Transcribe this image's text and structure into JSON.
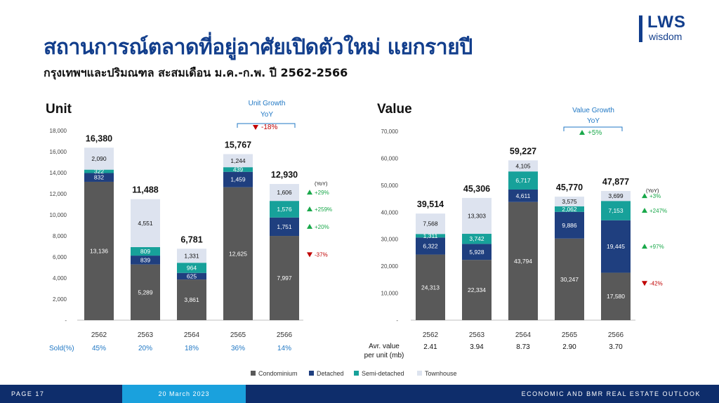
{
  "title": "สถานการณ์ตลาดที่อยู่อาศัยเปิดตัวใหม่ แยกรายปี",
  "subtitle": "กรุงเทพฯและปริมณฑล สะสมเดือน ม.ค.-ก.พ. ปี 2562-2566",
  "logo": {
    "name": "LWS",
    "sub": "wisdom"
  },
  "colors": {
    "Condominium": "#595959",
    "Detached": "#1f3f7f",
    "Semi-detached": "#17a19a",
    "Townhouse": "#dde3ef",
    "up": "#19a84a",
    "down": "#c00000",
    "accent_blue": "#1f77c4"
  },
  "legend": [
    "Condominium",
    "Detached",
    "Semi-detached",
    "Townhouse"
  ],
  "footer": {
    "page": "PAGE 17",
    "date": "20 March 2023",
    "right": "ECONOMIC AND BMR REAL ESTATE OUTLOOK"
  },
  "chart_data": [
    {
      "type": "bar",
      "stacked": true,
      "title": "Unit",
      "categories": [
        "2562",
        "2563",
        "2564",
        "2565",
        "2566"
      ],
      "ylim": [
        0,
        18000
      ],
      "yticks": [
        "-",
        "2,000",
        "4,000",
        "6,000",
        "8,000",
        "10,000",
        "12,000",
        "14,000",
        "16,000",
        "18,000"
      ],
      "series": [
        {
          "name": "Condominium",
          "values": [
            13136,
            5289,
            3861,
            12625,
            7997
          ],
          "labels": [
            "13,136",
            "5,289",
            "3,861",
            "12,625",
            "7,997"
          ]
        },
        {
          "name": "Detached",
          "values": [
            832,
            839,
            625,
            1459,
            1751
          ],
          "labels": [
            "832",
            "839",
            "625",
            "1,459",
            "1,751"
          ]
        },
        {
          "name": "Semi-detached",
          "values": [
            322,
            809,
            964,
            439,
            1576
          ],
          "labels": [
            "322",
            "809",
            "964",
            "439",
            "1,576"
          ]
        },
        {
          "name": "Townhouse",
          "values": [
            2090,
            4551,
            1331,
            1244,
            1606
          ],
          "labels": [
            "2,090",
            "4,551",
            "1,331",
            "1,244",
            "1,606"
          ]
        }
      ],
      "totals": [
        "16,380",
        "11,488",
        "6,781",
        "15,767",
        "12,930"
      ],
      "yoy_label": "(YoY)",
      "yoy": [
        {
          "series": "Townhouse",
          "text": "+29%",
          "dir": "up"
        },
        {
          "series": "Semi-detached",
          "text": "+259%",
          "dir": "up"
        },
        {
          "series": "Detached",
          "text": "+20%",
          "dir": "up"
        },
        {
          "series": "Condominium",
          "text": "-37%",
          "dir": "down"
        }
      ],
      "growth_box": {
        "line1": "Unit Growth",
        "line2": "YoY",
        "value": "-18%",
        "dir": "down"
      },
      "bottom_row": {
        "label": "Sold(%)",
        "values": [
          "45%",
          "20%",
          "18%",
          "36%",
          "14%"
        ]
      }
    },
    {
      "type": "bar",
      "stacked": true,
      "title": "Value",
      "categories": [
        "2562",
        "2563",
        "2564",
        "2565",
        "2566"
      ],
      "ylim": [
        0,
        70000
      ],
      "yticks": [
        "-",
        "10,000",
        "20,000",
        "30,000",
        "40,000",
        "50,000",
        "60,000",
        "70,000"
      ],
      "series": [
        {
          "name": "Condominium",
          "values": [
            24313,
            22334,
            43794,
            30247,
            17580
          ],
          "labels": [
            "24,313",
            "22,334",
            "43,794",
            "30,247",
            "17,580"
          ]
        },
        {
          "name": "Detached",
          "values": [
            6322,
            5928,
            4611,
            9886,
            19445
          ],
          "labels": [
            "6,322",
            "5,928",
            "4,611",
            "9,886",
            "19,445"
          ]
        },
        {
          "name": "Semi-detached",
          "values": [
            1311,
            3742,
            6717,
            2062,
            7153
          ],
          "labels": [
            "1,311",
            "3,742",
            "6,717",
            "2,062",
            "7,153"
          ]
        },
        {
          "name": "Townhouse",
          "values": [
            7568,
            13303,
            4105,
            3575,
            3699
          ],
          "labels": [
            "7,568",
            "13,303",
            "4,105",
            "3,575",
            "3,699"
          ]
        }
      ],
      "totals": [
        "39,514",
        "45,306",
        "59,227",
        "45,770",
        "47,877"
      ],
      "yoy_label": "(YoY)",
      "yoy": [
        {
          "series": "Townhouse",
          "text": "+3%",
          "dir": "up"
        },
        {
          "series": "Semi-detached",
          "text": "+247%",
          "dir": "up"
        },
        {
          "series": "Detached",
          "text": "+97%",
          "dir": "up"
        },
        {
          "series": "Condominium",
          "text": "-42%",
          "dir": "down"
        }
      ],
      "growth_box": {
        "line1": "Value Growth",
        "line2": "YoY",
        "value": "+5%",
        "dir": "up"
      },
      "bottom_row": {
        "label_line1": "Avr. value",
        "label_line2": "per unit (mb)",
        "values": [
          "2.41",
          "3.94",
          "8.73",
          "2.90",
          "3.70"
        ]
      }
    }
  ]
}
